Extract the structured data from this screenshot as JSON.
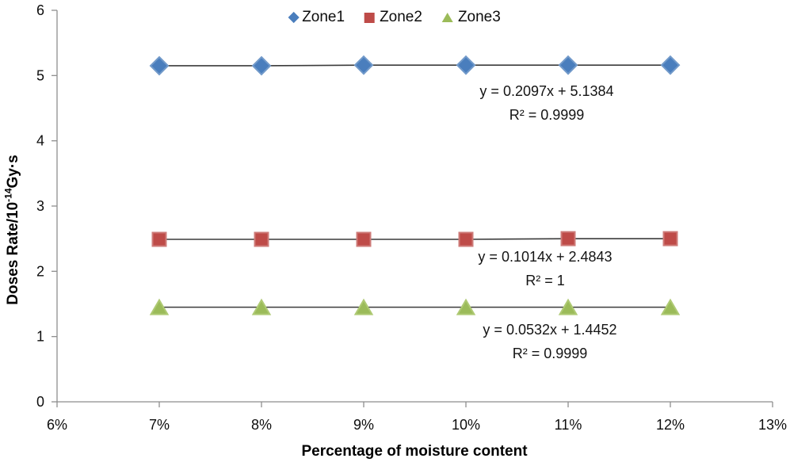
{
  "chart_data": {
    "type": "scatter",
    "title": "",
    "xlabel": "Percentage of moisture content",
    "ylabel": {
      "pre": "Doses Rate/10",
      "sup": "-14",
      "post": "Gy·s"
    },
    "x_ticks": [
      "6%",
      "7%",
      "8%",
      "9%",
      "10%",
      "11%",
      "12%",
      "13%"
    ],
    "x_tick_values": [
      6,
      7,
      8,
      9,
      10,
      11,
      12,
      13
    ],
    "y_ticks": [
      "0",
      "1",
      "2",
      "3",
      "4",
      "5",
      "6"
    ],
    "ylim": [
      0,
      6
    ],
    "xlim_percent": [
      6,
      13
    ],
    "grid": false,
    "legend_position": "top-center",
    "x_percent": [
      7,
      8,
      9,
      10,
      11,
      12
    ],
    "trendline_color": "#3b3b3b",
    "axis_color": "#8e8e8e",
    "series": [
      {
        "name": "Zone1",
        "marker": "diamond",
        "color": "#4A7EBD",
        "edge_color": "#729ACA",
        "values": [
          5.15,
          5.15,
          5.16,
          5.16,
          5.16,
          5.16
        ],
        "trendline": {
          "equation": "y = 0.2097x + 5.1384",
          "r2": "R² = 0.9999"
        }
      },
      {
        "name": "Zone2",
        "marker": "square",
        "color": "#BE4B48",
        "edge_color": "#CE7B78",
        "values": [
          2.49,
          2.49,
          2.49,
          2.49,
          2.5,
          2.5
        ],
        "trendline": {
          "equation": "y = 0.1014x + 2.4843",
          "r2": "R² = 1"
        }
      },
      {
        "name": "Zone3",
        "marker": "triangle",
        "color": "#9BBB59",
        "edge_color": "#AFCA74",
        "values": [
          1.45,
          1.45,
          1.45,
          1.45,
          1.45,
          1.45
        ],
        "trendline": {
          "equation": "y = 0.0532x + 1.4452",
          "r2": "R² = 0.9999"
        }
      }
    ]
  }
}
